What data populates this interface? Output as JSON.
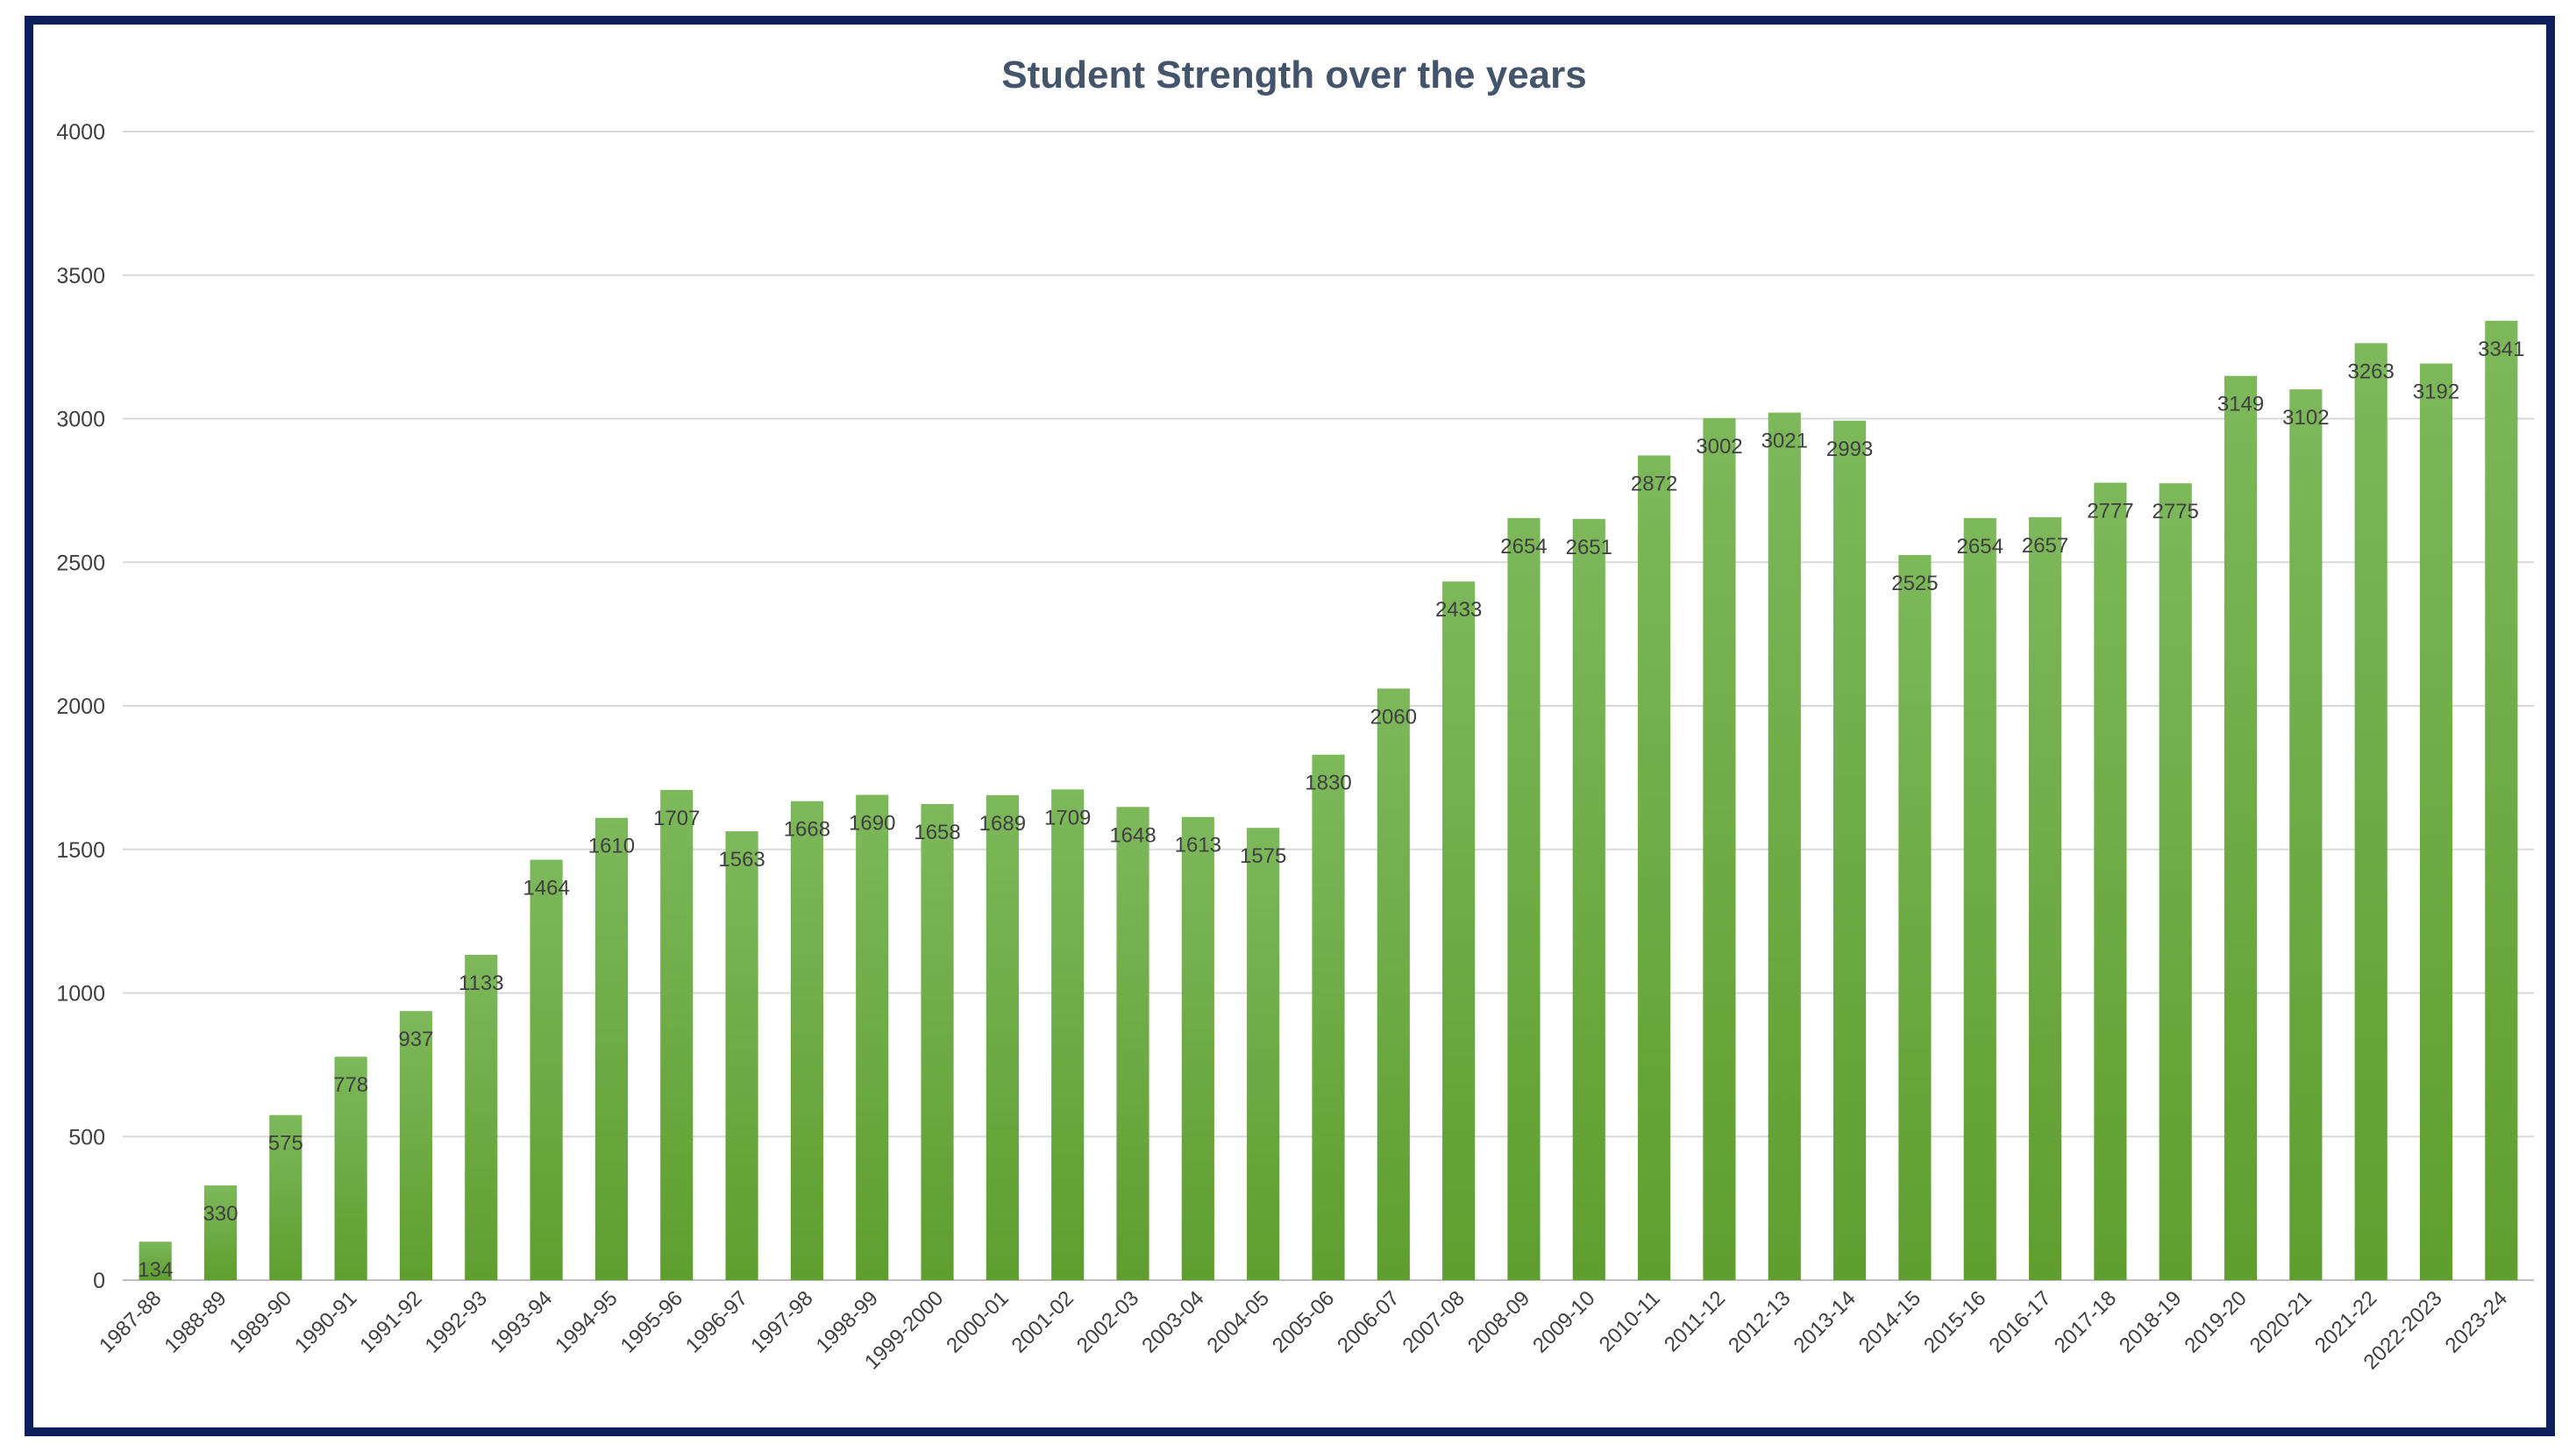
{
  "chart_data": {
    "type": "bar",
    "title": "Student Strength over the years",
    "xlabel": "",
    "ylabel": "",
    "ylim": [
      0,
      4000
    ],
    "yticks": [
      0,
      500,
      1000,
      1500,
      2000,
      2500,
      3000,
      3500,
      4000
    ],
    "grid": true,
    "legend": "none",
    "bar_color_top": "#7db85b",
    "bar_color_bottom": "#5f9e2f",
    "categories": [
      "1987-88",
      "1988-89",
      "1989-90",
      "1990-91",
      "1991-92",
      "1992-93",
      "1993-94",
      "1994-95",
      "1995-96",
      "1996-97",
      "1997-98",
      "1998-99",
      "1999-2000",
      "2000-01",
      "2001-02",
      "2002-03",
      "2003-04",
      "2004-05",
      "2005-06",
      "2006-07",
      "2007-08",
      "2008-09",
      "2009-10",
      "2010-11",
      "2011-12",
      "2012-13",
      "2013-14",
      "2014-15",
      "2015-16",
      "2016-17",
      "2017-18",
      "2018-19",
      "2019-20",
      "2020-21",
      "2021-22",
      "2022-2023",
      "2023-24"
    ],
    "values": [
      134,
      330,
      575,
      778,
      937,
      1133,
      1464,
      1610,
      1707,
      1563,
      1668,
      1690,
      1658,
      1689,
      1709,
      1648,
      1613,
      1575,
      1830,
      2060,
      2433,
      2654,
      2651,
      2872,
      3002,
      3021,
      2993,
      2525,
      2654,
      2657,
      2777,
      2775,
      3149,
      3102,
      3263,
      3192,
      3341
    ]
  }
}
